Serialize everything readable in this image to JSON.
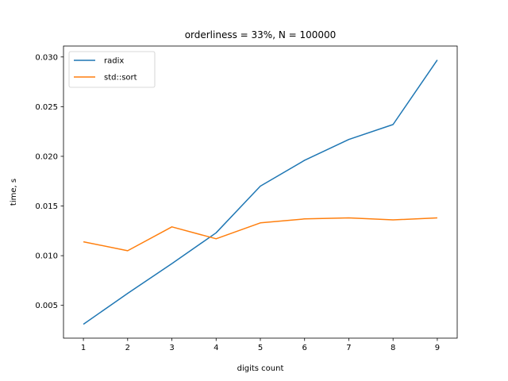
{
  "chart_data": {
    "type": "line",
    "title": "orderliness = 33%, N = 100000",
    "xlabel": "digits count",
    "ylabel": "time, s",
    "x": [
      1,
      2,
      3,
      4,
      5,
      6,
      7,
      8,
      9
    ],
    "xlim": [
      0.55,
      9.45
    ],
    "ylim": [
      0.0017,
      0.0311
    ],
    "xticks": [
      1,
      2,
      3,
      4,
      5,
      6,
      7,
      8,
      9
    ],
    "yticks": [
      0.005,
      0.01,
      0.015,
      0.02,
      0.025,
      0.03
    ],
    "ytick_labels": [
      "0.005",
      "0.010",
      "0.015",
      "0.020",
      "0.025",
      "0.030"
    ],
    "grid": false,
    "legend_position": "top-left",
    "series": [
      {
        "name": "radix",
        "color": "#1f77b4",
        "values": [
          0.0031,
          0.0062,
          0.0092,
          0.0123,
          0.017,
          0.0196,
          0.0217,
          0.0232,
          0.0297
        ]
      },
      {
        "name": "std::sort",
        "color": "#ff7f0e",
        "values": [
          0.0114,
          0.0105,
          0.0129,
          0.0117,
          0.0133,
          0.0137,
          0.0138,
          0.0136,
          0.0138
        ]
      }
    ]
  }
}
